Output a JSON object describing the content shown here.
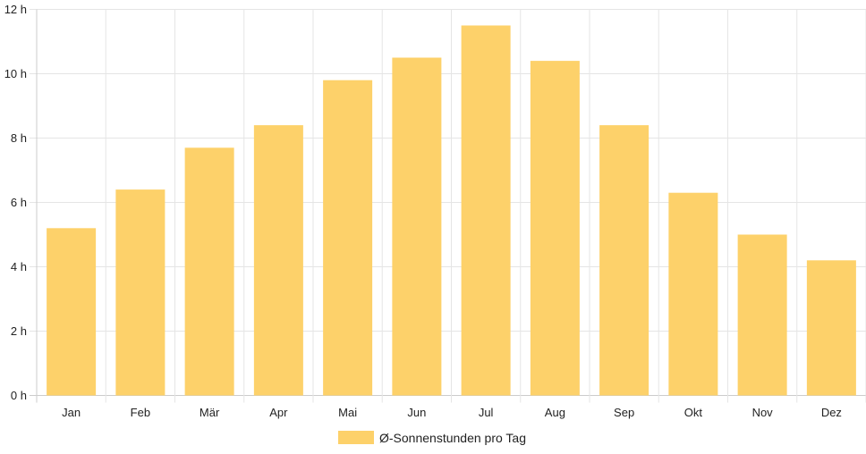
{
  "chart_data": {
    "type": "bar",
    "categories": [
      "Jan",
      "Feb",
      "Mär",
      "Apr",
      "Mai",
      "Jun",
      "Jul",
      "Aug",
      "Sep",
      "Okt",
      "Nov",
      "Dez"
    ],
    "series": [
      {
        "name": "Ø-Sonnenstunden pro Tag",
        "values": [
          5.2,
          6.4,
          7.7,
          8.4,
          9.8,
          10.5,
          11.5,
          10.4,
          8.4,
          6.3,
          5.0,
          4.2
        ],
        "color": "#fdd16a"
      }
    ],
    "y_ticks": [
      "0 h",
      "2 h",
      "4 h",
      "6 h",
      "8 h",
      "10 h",
      "12 h"
    ],
    "ylim": [
      0,
      12
    ],
    "grid": true,
    "legend_position": "bottom"
  }
}
